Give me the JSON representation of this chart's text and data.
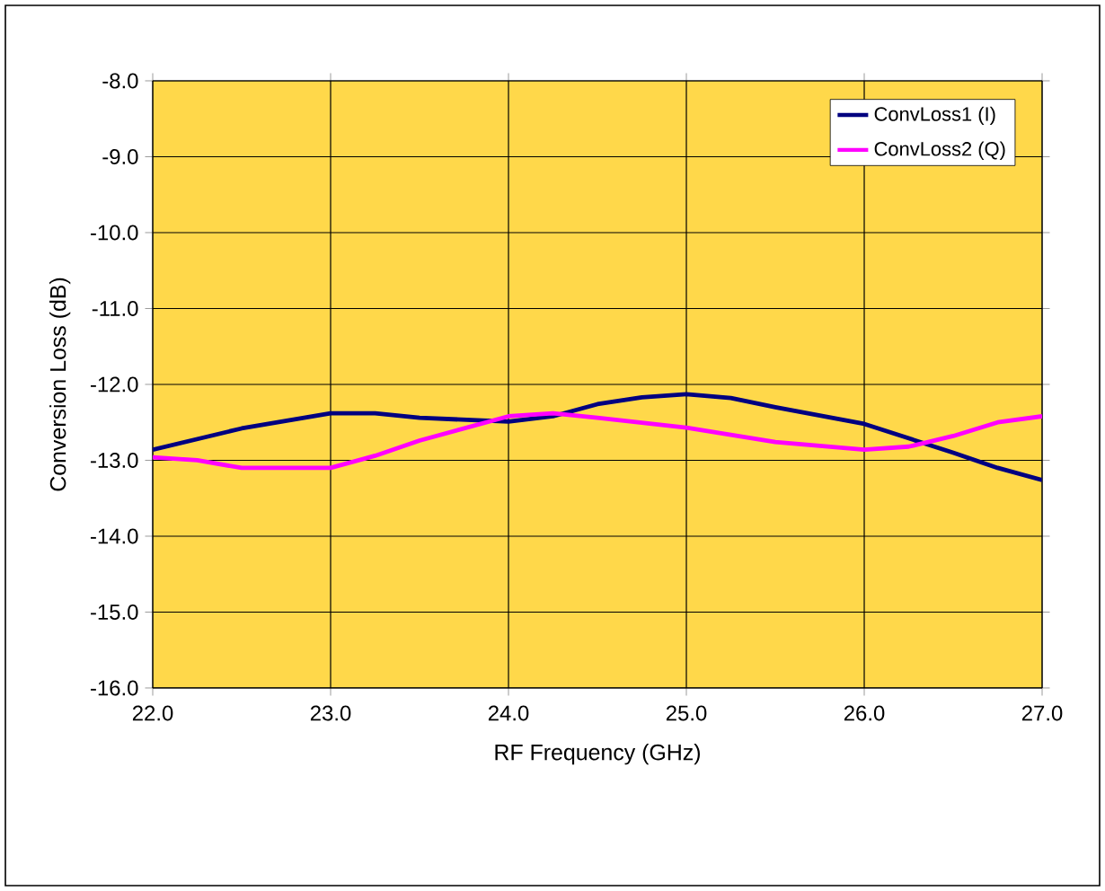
{
  "chart_data": {
    "type": "line",
    "xlabel": "RF Frequency (GHz)",
    "ylabel": "Conversion Loss (dB)",
    "xlim": [
      22,
      27
    ],
    "ylim": [
      -16,
      -8
    ],
    "xticks": [
      {
        "value": 22,
        "label": "22.0"
      },
      {
        "value": 23,
        "label": "23.0"
      },
      {
        "value": 24,
        "label": "24.0"
      },
      {
        "value": 25,
        "label": "25.0"
      },
      {
        "value": 26,
        "label": "26.0"
      },
      {
        "value": 27,
        "label": "27.0"
      }
    ],
    "yticks": [
      {
        "value": -16,
        "label": "-16.0"
      },
      {
        "value": -15,
        "label": "-15.0"
      },
      {
        "value": -14,
        "label": "-14.0"
      },
      {
        "value": -13,
        "label": "-13.0"
      },
      {
        "value": -12,
        "label": "-12.0"
      },
      {
        "value": -11,
        "label": "-11.0"
      },
      {
        "value": -10,
        "label": "-10.0"
      },
      {
        "value": -9,
        "label": "-9.0"
      },
      {
        "value": -8,
        "label": "-8.0"
      }
    ],
    "grid": true,
    "legend": "top right",
    "marker": "none",
    "line_style": "solid",
    "series": [
      {
        "name": "ConvLoss1 (I)",
        "color": "#000080",
        "x": [
          22,
          22.5,
          23,
          23.25,
          23.5,
          24,
          24.25,
          24.5,
          24.75,
          25,
          25.25,
          25.5,
          26,
          26.5,
          26.75,
          27
        ],
        "values": [
          -12.86,
          -12.58,
          -12.38,
          -12.38,
          -12.44,
          -12.49,
          -12.42,
          -12.26,
          -12.17,
          -12.13,
          -12.18,
          -12.3,
          -12.52,
          -12.9,
          -13.1,
          -13.26
        ]
      },
      {
        "name": "ConvLoss2 (Q)",
        "color": "#ff00ff",
        "x": [
          22,
          22.25,
          22.5,
          23,
          23.25,
          23.5,
          24,
          24.25,
          24.5,
          25,
          25.5,
          26,
          26.25,
          26.5,
          26.75,
          27
        ],
        "values": [
          -12.96,
          -13.0,
          -13.1,
          -13.1,
          -12.94,
          -12.74,
          -12.42,
          -12.38,
          -12.44,
          -12.57,
          -12.76,
          -12.86,
          -12.82,
          -12.68,
          -12.5,
          -12.42
        ]
      }
    ]
  }
}
